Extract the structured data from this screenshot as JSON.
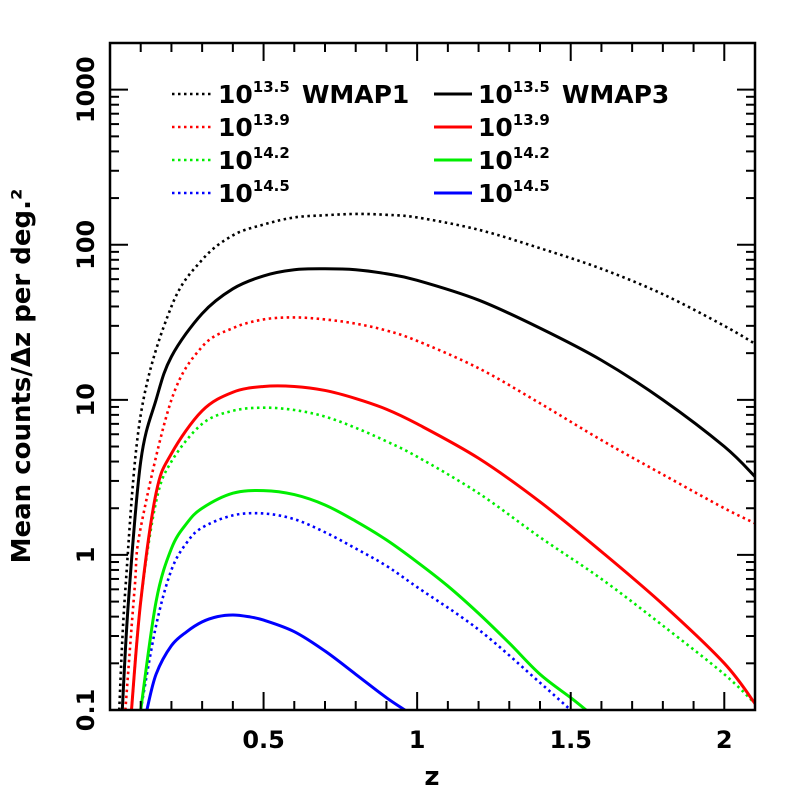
{
  "chart_data": {
    "type": "line",
    "xlabel": "z",
    "ylabel": "Mean counts/Δz per deg.²",
    "xlim": [
      0,
      2.1
    ],
    "ylim": [
      0.1,
      2000
    ],
    "yscale": "log",
    "xticks": [
      0.5,
      1,
      1.5,
      2
    ],
    "xtick_labels": [
      "0.5",
      "1",
      "1.5",
      "2"
    ],
    "yticks": [
      0.1,
      1,
      10,
      100,
      1000
    ],
    "ytick_labels": [
      "0.1",
      "1",
      "10",
      "100",
      "1000"
    ],
    "grid": false,
    "legend_position": "top",
    "colors": {
      "13.5": "#000000",
      "13.9": "#ff0000",
      "14.2": "#00ee00",
      "14.5": "#0000ff"
    },
    "series": [
      {
        "name": "10^13.5 WMAP1",
        "mass_label": "10",
        "mass_exp": "13.5",
        "suffix": "WMAP1",
        "style": "dotted",
        "color_key": "13.5",
        "x": [
          0.03,
          0.05,
          0.1,
          0.2,
          0.3,
          0.4,
          0.5,
          0.6,
          0.7,
          0.8,
          0.9,
          1.0,
          1.2,
          1.4,
          1.6,
          1.8,
          2.0,
          2.1
        ],
        "y": [
          0.1,
          0.6,
          8,
          40,
          80,
          115,
          135,
          150,
          155,
          158,
          156,
          150,
          125,
          95,
          70,
          48,
          30,
          23
        ]
      },
      {
        "name": "10^13.9",
        "mass_label": "10",
        "mass_exp": "13.9",
        "suffix": "",
        "style": "dotted",
        "color_key": "13.9",
        "x": [
          0.05,
          0.08,
          0.1,
          0.2,
          0.3,
          0.4,
          0.5,
          0.6,
          0.7,
          0.8,
          0.9,
          1.0,
          1.2,
          1.4,
          1.6,
          1.8,
          2.0,
          2.1
        ],
        "y": [
          0.1,
          0.6,
          1.5,
          10,
          22,
          29,
          33,
          34,
          33,
          31,
          28,
          24,
          16,
          9.5,
          5.5,
          3.3,
          2.0,
          1.6
        ]
      },
      {
        "name": "10^14.2",
        "mass_label": "10",
        "mass_exp": "14.2",
        "suffix": "",
        "style": "dotted",
        "color_key": "14.2",
        "x": [
          0.07,
          0.1,
          0.15,
          0.2,
          0.3,
          0.4,
          0.5,
          0.6,
          0.7,
          0.8,
          0.9,
          1.0,
          1.2,
          1.4,
          1.6,
          1.8,
          2.0,
          2.1
        ],
        "y": [
          0.1,
          0.5,
          2.2,
          4.0,
          7.0,
          8.5,
          8.9,
          8.6,
          7.8,
          6.6,
          5.4,
          4.3,
          2.5,
          1.3,
          0.7,
          0.35,
          0.17,
          0.11
        ]
      },
      {
        "name": "10^14.5",
        "mass_label": "10",
        "mass_exp": "14.5",
        "suffix": "",
        "style": "dotted",
        "color_key": "14.5",
        "x": [
          0.1,
          0.15,
          0.2,
          0.25,
          0.3,
          0.4,
          0.5,
          0.6,
          0.7,
          0.8,
          0.9,
          1.0,
          1.2,
          1.4,
          1.5
        ],
        "y": [
          0.1,
          0.35,
          0.8,
          1.2,
          1.5,
          1.8,
          1.85,
          1.7,
          1.4,
          1.1,
          0.85,
          0.62,
          0.33,
          0.15,
          0.1
        ]
      },
      {
        "name": "10^13.5 WMAP3",
        "mass_label": "10",
        "mass_exp": "13.5",
        "suffix": "WMAP3",
        "style": "solid",
        "color_key": "13.5",
        "x": [
          0.04,
          0.06,
          0.1,
          0.15,
          0.2,
          0.3,
          0.4,
          0.5,
          0.6,
          0.7,
          0.8,
          0.9,
          1.0,
          1.2,
          1.4,
          1.6,
          1.8,
          2.0,
          2.1
        ],
        "y": [
          0.1,
          0.5,
          4,
          10,
          19,
          36,
          52,
          63,
          69,
          70,
          69,
          65,
          59,
          44,
          29,
          18,
          10,
          5,
          3.2
        ]
      },
      {
        "name": "10^13.9",
        "mass_label": "10",
        "mass_exp": "13.9",
        "suffix": "",
        "style": "solid",
        "color_key": "13.9",
        "x": [
          0.07,
          0.1,
          0.15,
          0.2,
          0.3,
          0.4,
          0.5,
          0.6,
          0.7,
          0.8,
          0.9,
          1.0,
          1.2,
          1.4,
          1.6,
          1.8,
          2.0,
          2.1
        ],
        "y": [
          0.1,
          0.5,
          2.5,
          4.5,
          8.5,
          11.2,
          12.2,
          12.2,
          11.5,
          10.2,
          8.7,
          7.0,
          4.2,
          2.2,
          1.05,
          0.48,
          0.2,
          0.11
        ]
      },
      {
        "name": "10^14.2",
        "mass_label": "10",
        "mass_exp": "14.2",
        "suffix": "",
        "style": "solid",
        "color_key": "14.2",
        "x": [
          0.1,
          0.15,
          0.2,
          0.25,
          0.3,
          0.4,
          0.5,
          0.6,
          0.7,
          0.8,
          0.9,
          1.0,
          1.1,
          1.2,
          1.3,
          1.4,
          1.5,
          1.55
        ],
        "y": [
          0.1,
          0.5,
          1.1,
          1.6,
          2.0,
          2.5,
          2.6,
          2.45,
          2.1,
          1.65,
          1.25,
          0.9,
          0.63,
          0.42,
          0.27,
          0.17,
          0.12,
          0.1
        ]
      },
      {
        "name": "10^14.5",
        "mass_label": "10",
        "mass_exp": "14.5",
        "suffix": "",
        "style": "solid",
        "color_key": "14.5",
        "x": [
          0.12,
          0.15,
          0.2,
          0.25,
          0.3,
          0.35,
          0.4,
          0.45,
          0.5,
          0.6,
          0.7,
          0.8,
          0.9,
          0.96
        ],
        "y": [
          0.1,
          0.17,
          0.26,
          0.32,
          0.37,
          0.4,
          0.41,
          0.4,
          0.38,
          0.32,
          0.24,
          0.17,
          0.12,
          0.1
        ]
      }
    ]
  }
}
